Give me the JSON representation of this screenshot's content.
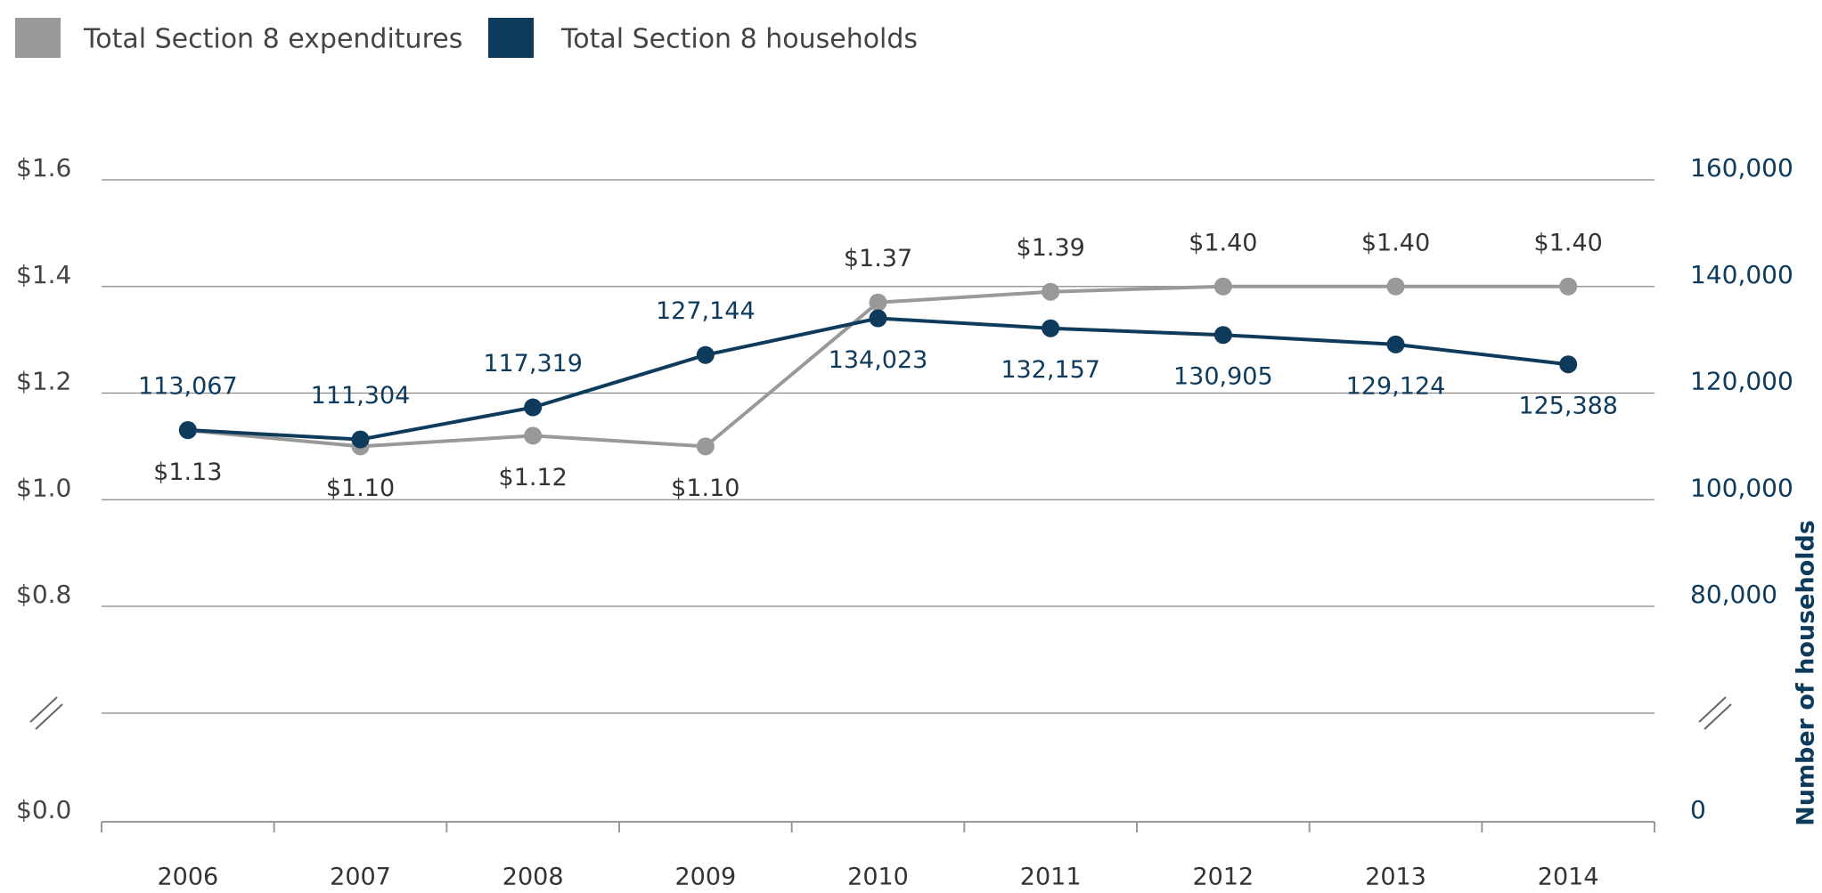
{
  "chart_data": {
    "type": "line",
    "categories": [
      "2006",
      "2007",
      "2008",
      "2009",
      "2010",
      "2011",
      "2012",
      "2013",
      "2014"
    ],
    "series": [
      {
        "name": "Total Section 8 expenditures",
        "color": "#999999",
        "values": [
          1.13,
          1.1,
          1.12,
          1.1,
          1.37,
          1.39,
          1.4,
          1.4,
          1.4
        ],
        "value_labels": [
          "$1.13",
          "$1.10",
          "$1.12",
          "$1.10",
          "$1.37",
          "$1.39",
          "$1.40",
          "$1.40",
          "$1.40"
        ]
      },
      {
        "name": "Total Section 8 households",
        "color": "#0e3a5c",
        "axis": "y2",
        "values": [
          113067,
          111304,
          117319,
          127144,
          134023,
          132157,
          130905,
          129124,
          125388
        ],
        "value_labels": [
          "113,067",
          "111,304",
          "117,319",
          "127,144",
          "134,023",
          "132,157",
          "130,905",
          "129,124",
          "125,388"
        ]
      }
    ],
    "ylim": [
      0,
      1.6
    ],
    "yticks": [
      {
        "value": 0,
        "label": "$0.0"
      },
      {
        "value": 0.8,
        "label": "$0.8"
      },
      {
        "value": 1.0,
        "label": "$1.0"
      },
      {
        "value": 1.2,
        "label": "$1.2"
      },
      {
        "value": 1.4,
        "label": "$1.4"
      },
      {
        "value": 1.6,
        "label": "$1.6"
      }
    ],
    "y_axis_break": [
      0,
      0.8
    ],
    "y2lim": [
      0,
      160000
    ],
    "y2ticks": [
      0,
      {
        "value": 80000,
        "label": "80,000"
      },
      {
        "value": 100000,
        "label": "100,000"
      },
      {
        "value": 120000,
        "label": "120,000"
      },
      {
        "value": 140000,
        "label": "140,000"
      },
      {
        "value": 160000,
        "label": "160,000"
      }
    ],
    "y2_axis_break": [
      0,
      80000
    ],
    "y2_label": "Number of households",
    "grid": true,
    "legend": "top-left"
  }
}
